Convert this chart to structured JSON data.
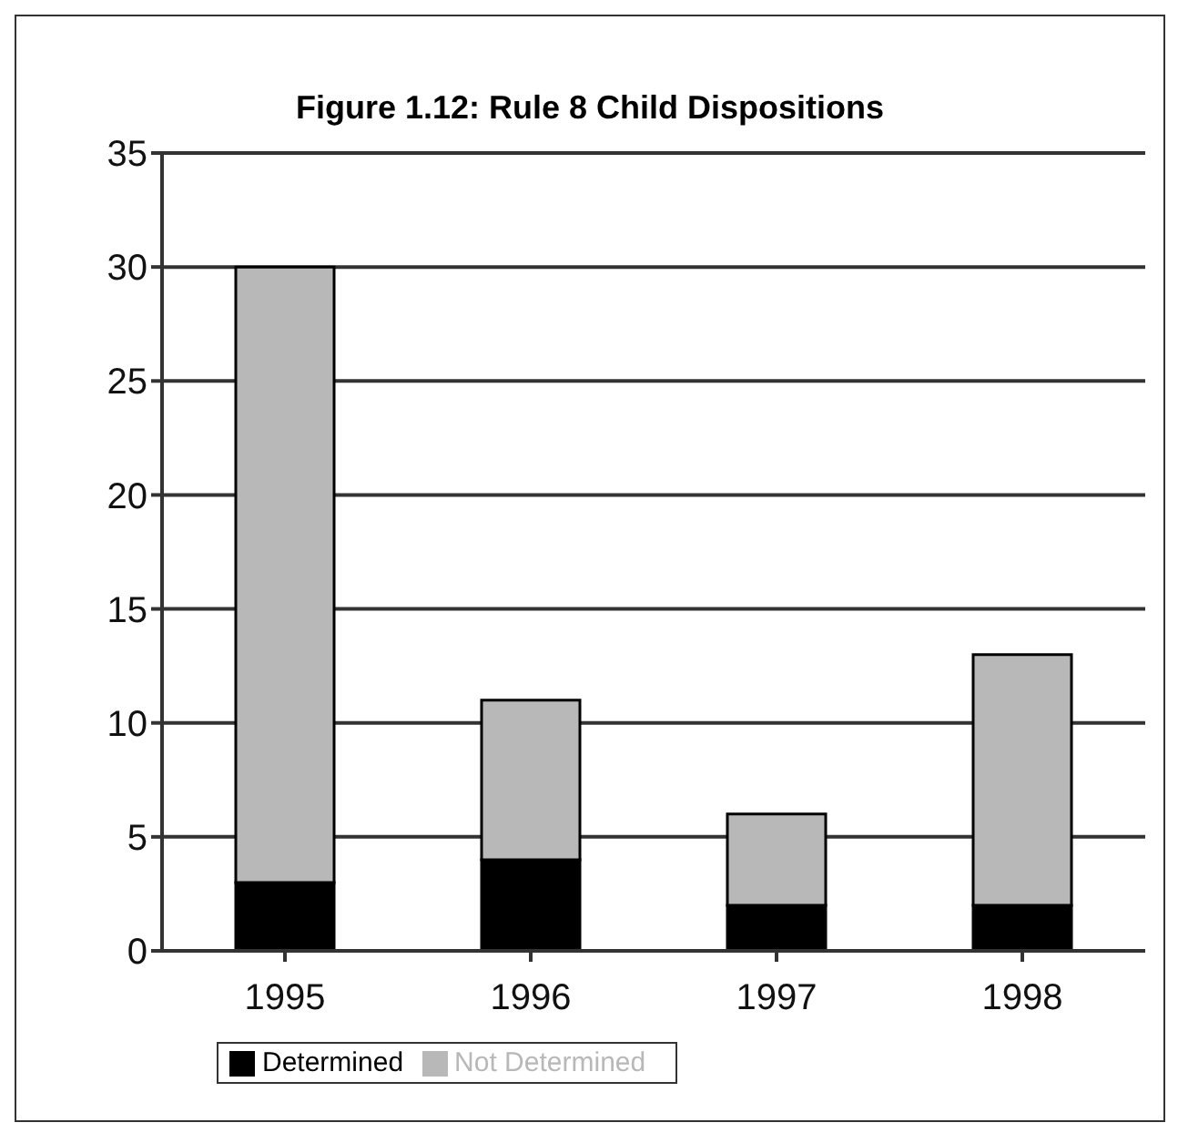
{
  "chart_data": {
    "type": "bar",
    "title": "Figure 1.12: Rule 8 Child Dispositions",
    "categories": [
      "1995",
      "1996",
      "1997",
      "1998"
    ],
    "stacked": true,
    "series": [
      {
        "name": "Determined",
        "color": "#000000",
        "values": [
          3,
          4,
          2,
          2
        ]
      },
      {
        "name": "Not Determined",
        "color": "#b8b8b8",
        "values": [
          27,
          7,
          4,
          11
        ]
      }
    ],
    "ylim": [
      0,
      35
    ],
    "yticks": [
      0,
      5,
      10,
      15,
      20,
      25,
      30,
      35
    ],
    "grid": "y",
    "legend": "bottom"
  }
}
